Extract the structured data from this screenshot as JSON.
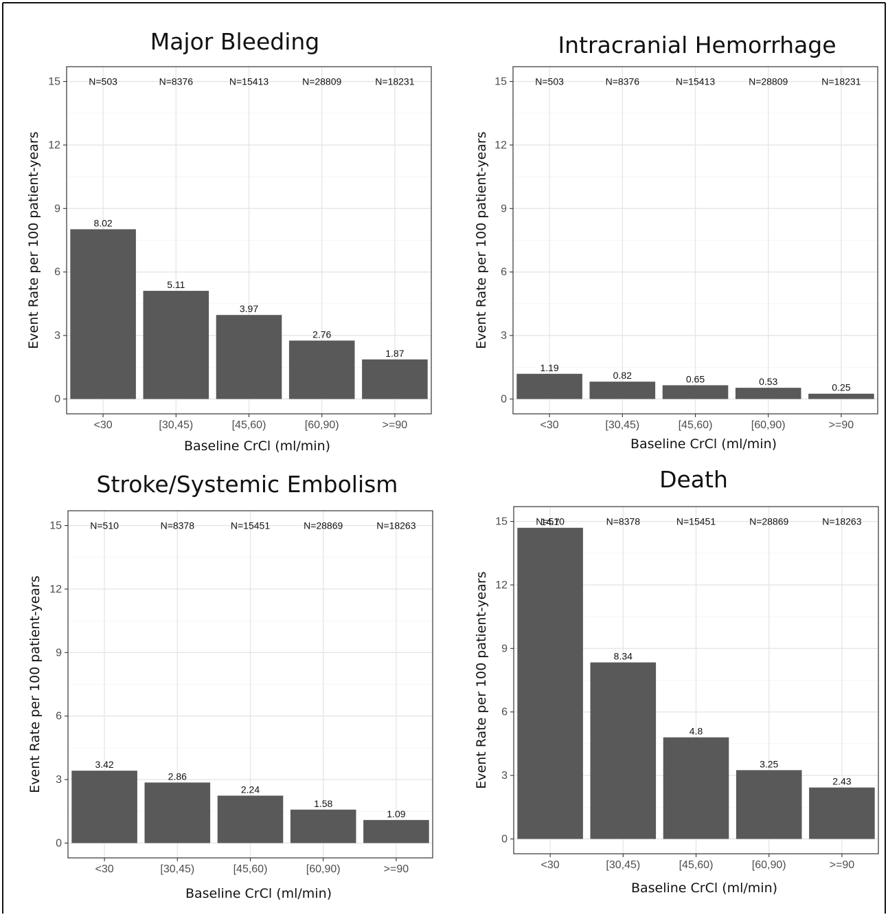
{
  "colors": {
    "bar": "#595959",
    "panel_border": "#333333",
    "grid": "#e5e5e5"
  },
  "chart_data": [
    {
      "type": "bar",
      "title": "Major Bleeding",
      "xlabel": "Baseline CrCl (ml/min)",
      "ylabel": "Event Rate per 100 patient-years",
      "categories": [
        "<30",
        "[30,45)",
        "[45,60)",
        "[60,90)",
        ">=90"
      ],
      "values": [
        8.02,
        5.11,
        3.97,
        2.76,
        1.87
      ],
      "value_labels": [
        "8.02",
        "5.11",
        "3.97",
        "2.76",
        "1.87"
      ],
      "n_labels": [
        "N=503",
        "N=8376",
        "N=15413",
        "N=28809",
        "N=18231"
      ],
      "yticks": [
        0,
        3,
        6,
        9,
        12,
        15
      ],
      "ylim": [
        -0.7,
        15.7
      ],
      "grid": true
    },
    {
      "type": "bar",
      "title": "Intracranial Hemorrhage",
      "xlabel": "Baseline CrCl (ml/min)",
      "ylabel": "Event Rate per 100 patient-years",
      "categories": [
        "<30",
        "[30,45)",
        "[45,60)",
        "[60,90)",
        ">=90"
      ],
      "values": [
        1.19,
        0.82,
        0.65,
        0.53,
        0.25
      ],
      "value_labels": [
        "1.19",
        "0.82",
        "0.65",
        "0.53",
        "0.25"
      ],
      "n_labels": [
        "N=503",
        "N=8376",
        "N=15413",
        "N=28809",
        "N=18231"
      ],
      "yticks": [
        0,
        3,
        6,
        9,
        12,
        15
      ],
      "ylim": [
        -0.7,
        15.7
      ],
      "grid": true
    },
    {
      "type": "bar",
      "title": "Stroke/Systemic Embolism",
      "xlabel": "Baseline CrCl (ml/min)",
      "ylabel": "Event Rate per 100 patient-years",
      "categories": [
        "<30",
        "[30,45)",
        "[45,60)",
        "[60,90)",
        ">=90"
      ],
      "values": [
        3.42,
        2.86,
        2.24,
        1.58,
        1.09
      ],
      "value_labels": [
        "3.42",
        "2.86",
        "2.24",
        "1.58",
        "1.09"
      ],
      "n_labels": [
        "N=510",
        "N=8378",
        "N=15451",
        "N=28869",
        "N=18263"
      ],
      "yticks": [
        0,
        3,
        6,
        9,
        12,
        15
      ],
      "ylim": [
        -0.7,
        15.7
      ],
      "grid": true
    },
    {
      "type": "bar",
      "title": "Death",
      "xlabel": "Baseline CrCl (ml/min)",
      "ylabel": "Event Rate per 100 patient-years",
      "categories": [
        "<30",
        "[30,45)",
        "[45,60)",
        "[60,90)",
        ">=90"
      ],
      "values": [
        14.7,
        8.34,
        4.8,
        3.25,
        2.43
      ],
      "value_labels": [
        "14.7",
        "8.34",
        "4.8",
        "3.25",
        "2.43"
      ],
      "n_labels": [
        "N=510",
        "N=8378",
        "N=15451",
        "N=28869",
        "N=18263"
      ],
      "yticks": [
        0,
        3,
        6,
        9,
        12,
        15
      ],
      "ylim": [
        -0.7,
        15.7
      ],
      "grid": true
    }
  ]
}
